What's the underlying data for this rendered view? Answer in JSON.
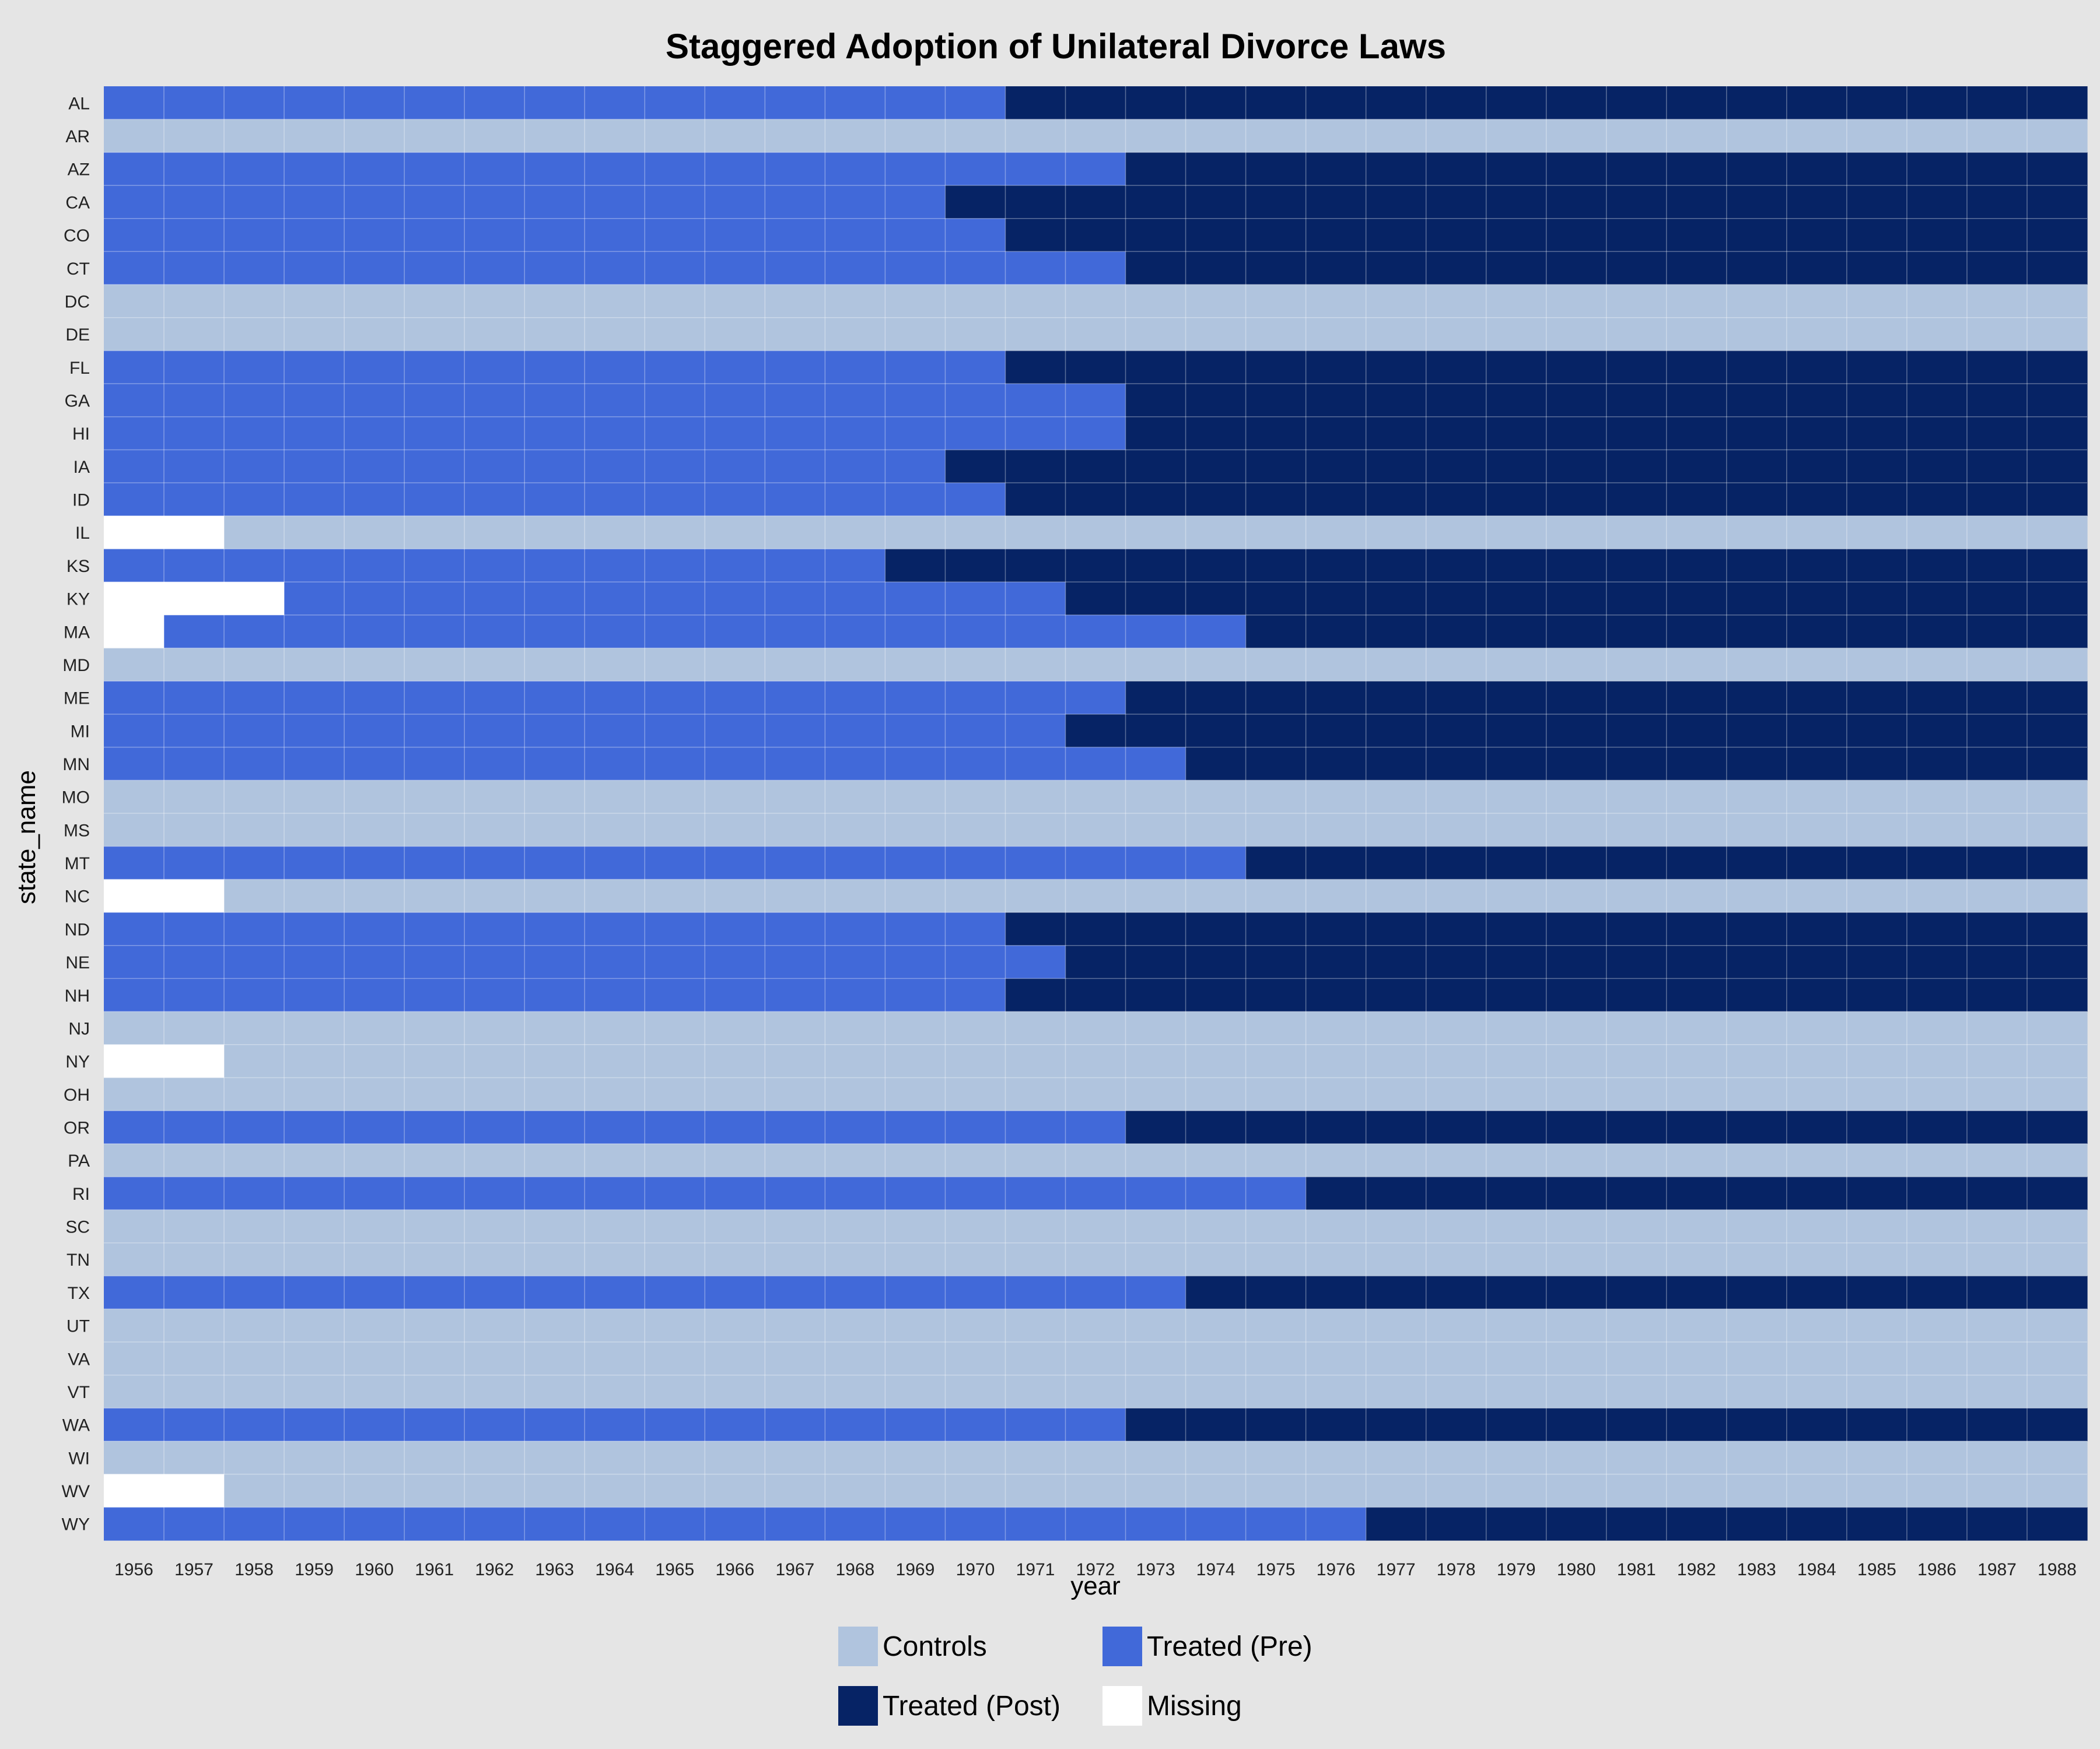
{
  "chart_data": {
    "type": "heatmap",
    "title": "Staggered Adoption of Unilateral Divorce Laws",
    "xlabel": "year",
    "ylabel": "state_name",
    "x": [
      1956,
      1957,
      1958,
      1959,
      1960,
      1961,
      1962,
      1963,
      1964,
      1965,
      1966,
      1967,
      1968,
      1969,
      1970,
      1971,
      1972,
      1973,
      1974,
      1975,
      1976,
      1977,
      1978,
      1979,
      1980,
      1981,
      1982,
      1983,
      1984,
      1985,
      1986,
      1987,
      1988
    ],
    "y": [
      "AL",
      "AR",
      "AZ",
      "CA",
      "CO",
      "CT",
      "DC",
      "DE",
      "FL",
      "GA",
      "HI",
      "IA",
      "ID",
      "IL",
      "KS",
      "KY",
      "MA",
      "MD",
      "ME",
      "MI",
      "MN",
      "MO",
      "MS",
      "MT",
      "NC",
      "ND",
      "NE",
      "NH",
      "NJ",
      "NY",
      "OH",
      "OR",
      "PA",
      "RI",
      "SC",
      "TN",
      "TX",
      "UT",
      "VA",
      "VT",
      "WA",
      "WI",
      "WV",
      "WY"
    ],
    "categories": [
      "Controls",
      "Treated (Pre)",
      "Treated (Post)",
      "Missing"
    ],
    "colors": {
      "Controls": "#b0c4de",
      "Treated (Pre)": "#4169d9",
      "Treated (Post)": "#062365",
      "Missing": "#ffffff"
    },
    "legend_position": "bottom",
    "grid": true,
    "rows": [
      {
        "state": "AL",
        "adoption_year": 1971,
        "missing_until": null
      },
      {
        "state": "AR",
        "adoption_year": null,
        "missing_until": null
      },
      {
        "state": "AZ",
        "adoption_year": 1973,
        "missing_until": null
      },
      {
        "state": "CA",
        "adoption_year": 1970,
        "missing_until": null
      },
      {
        "state": "CO",
        "adoption_year": 1971,
        "missing_until": null
      },
      {
        "state": "CT",
        "adoption_year": 1973,
        "missing_until": null
      },
      {
        "state": "DC",
        "adoption_year": null,
        "missing_until": null
      },
      {
        "state": "DE",
        "adoption_year": null,
        "missing_until": null
      },
      {
        "state": "FL",
        "adoption_year": 1971,
        "missing_until": null
      },
      {
        "state": "GA",
        "adoption_year": 1973,
        "missing_until": null
      },
      {
        "state": "HI",
        "adoption_year": 1973,
        "missing_until": null
      },
      {
        "state": "IA",
        "adoption_year": 1970,
        "missing_until": null
      },
      {
        "state": "ID",
        "adoption_year": 1971,
        "missing_until": null
      },
      {
        "state": "IL",
        "adoption_year": null,
        "missing_until": 1957
      },
      {
        "state": "KS",
        "adoption_year": 1969,
        "missing_until": null
      },
      {
        "state": "KY",
        "adoption_year": 1972,
        "missing_until": 1958
      },
      {
        "state": "MA",
        "adoption_year": 1975,
        "missing_until": 1956
      },
      {
        "state": "MD",
        "adoption_year": null,
        "missing_until": null
      },
      {
        "state": "ME",
        "adoption_year": 1973,
        "missing_until": null
      },
      {
        "state": "MI",
        "adoption_year": 1972,
        "missing_until": null
      },
      {
        "state": "MN",
        "adoption_year": 1974,
        "missing_until": null
      },
      {
        "state": "MO",
        "adoption_year": null,
        "missing_until": null
      },
      {
        "state": "MS",
        "adoption_year": null,
        "missing_until": null
      },
      {
        "state": "MT",
        "adoption_year": 1975,
        "missing_until": null
      },
      {
        "state": "NC",
        "adoption_year": null,
        "missing_until": 1957
      },
      {
        "state": "ND",
        "adoption_year": 1971,
        "missing_until": null
      },
      {
        "state": "NE",
        "adoption_year": 1972,
        "missing_until": null
      },
      {
        "state": "NH",
        "adoption_year": 1971,
        "missing_until": null
      },
      {
        "state": "NJ",
        "adoption_year": null,
        "missing_until": null
      },
      {
        "state": "NY",
        "adoption_year": null,
        "missing_until": 1957
      },
      {
        "state": "OH",
        "adoption_year": null,
        "missing_until": null
      },
      {
        "state": "OR",
        "adoption_year": 1973,
        "missing_until": null
      },
      {
        "state": "PA",
        "adoption_year": null,
        "missing_until": null
      },
      {
        "state": "RI",
        "adoption_year": 1976,
        "missing_until": null
      },
      {
        "state": "SC",
        "adoption_year": null,
        "missing_until": null
      },
      {
        "state": "TN",
        "adoption_year": null,
        "missing_until": null
      },
      {
        "state": "TX",
        "adoption_year": 1974,
        "missing_until": null
      },
      {
        "state": "UT",
        "adoption_year": null,
        "missing_until": null
      },
      {
        "state": "VA",
        "adoption_year": null,
        "missing_until": null
      },
      {
        "state": "VT",
        "adoption_year": null,
        "missing_until": null
      },
      {
        "state": "WA",
        "adoption_year": 1973,
        "missing_until": null
      },
      {
        "state": "WI",
        "adoption_year": null,
        "missing_until": null
      },
      {
        "state": "WV",
        "adoption_year": null,
        "missing_until": 1957
      },
      {
        "state": "WY",
        "adoption_year": 1977,
        "missing_until": null
      }
    ]
  }
}
